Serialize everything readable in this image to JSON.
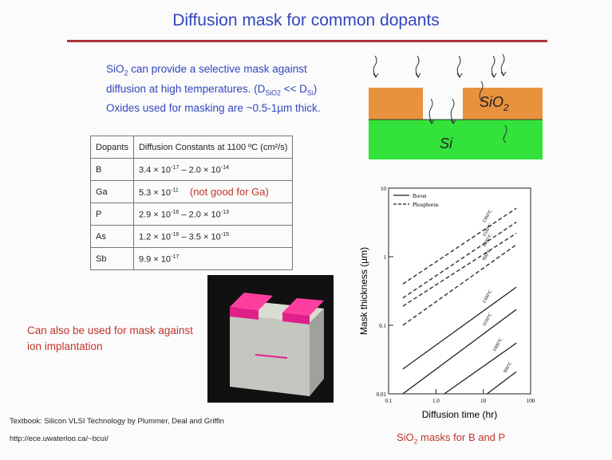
{
  "header": {
    "title": "Diffusion mask for common dopants"
  },
  "intro": {
    "line1": [
      "SiO",
      "2",
      " can provide a selective mask against"
    ],
    "line2": [
      "diffusion at high temperatures. (D",
      "SiO2",
      " << D",
      "Si",
      ")"
    ],
    "line3": "Oxides used for masking are ~0.5-1µm thick."
  },
  "table": {
    "header": [
      "Dopants",
      "Diffusion Constants at 1100 ºC (cm²/s)"
    ],
    "rows": [
      {
        "dopant": "B",
        "value": [
          "3.4 × 10",
          "-17",
          " – 2.0 × 10",
          "-14"
        ]
      },
      {
        "dopant": "Ga",
        "value": [
          "5.3 × 10",
          "-11"
        ],
        "note": "(not good for Ga)"
      },
      {
        "dopant": "P",
        "value": [
          "2.9 × 10",
          "-16",
          " – 2.0 × 10",
          "-13"
        ]
      },
      {
        "dopant": "As",
        "value": [
          "1.2 × 10",
          "-16",
          " – 3.5 × 10",
          "-15"
        ]
      },
      {
        "dopant": "Sb",
        "value": [
          "9.9 × 10",
          "-17"
        ]
      }
    ]
  },
  "diagram": {
    "oxide": [
      "SiO",
      "2"
    ],
    "substrate": "Si"
  },
  "implant_note": "Can also be used for mask against ion implantation",
  "plot": {
    "ylabel": "Mask thickness (µm)",
    "xlabel": "Diffusion time (hr)",
    "xscale": "log",
    "yscale": "log",
    "xlim": [
      0.1,
      100
    ],
    "ylim": [
      0.01,
      10
    ],
    "xticks": [
      0.1,
      {
        "value": 1,
        "label": "1.0"
      },
      10,
      100
    ],
    "yticks": [
      0.01,
      0.1,
      1,
      10
    ],
    "legend": [
      {
        "label": "Boron",
        "dashed": false
      },
      {
        "label": "Phosphorus",
        "dashed": true
      }
    ],
    "series": [
      {
        "name": "1300°C",
        "dashed": true,
        "x": [
          0.2,
          50
        ],
        "values": [
          0.4,
          5.1
        ]
      },
      {
        "name": "1100°C",
        "dashed": true,
        "x": [
          0.2,
          50
        ],
        "values": [
          0.25,
          3.2
        ]
      },
      {
        "name": "1000°C",
        "dashed": true,
        "x": [
          0.2,
          50
        ],
        "values": [
          0.19,
          2.2
        ]
      },
      {
        "name": "900°C",
        "dashed": true,
        "x": [
          0.2,
          50
        ],
        "values": [
          0.1,
          1.5
        ]
      },
      {
        "name": "1300°C",
        "dashed": false,
        "x": [
          0.2,
          50
        ],
        "values": [
          0.023,
          0.36
        ]
      },
      {
        "name": "1100°C",
        "dashed": false,
        "x": [
          0.2,
          50
        ],
        "values": [
          0.01,
          0.17
        ]
      },
      {
        "name": "1000°C",
        "dashed": false,
        "x": [
          1.5,
          50
        ],
        "values": [
          0.01,
          0.055
        ]
      },
      {
        "name": "900°C",
        "dashed": false,
        "x": [
          12,
          50
        ],
        "values": [
          0.01,
          0.021
        ]
      }
    ]
  },
  "caption": [
    "SiO",
    "2",
    " masks for B and P"
  ],
  "footer": {
    "textbook": "Textbook: Silicon VLSI Technology by Plummer, Deal and Griffin",
    "url": "http://ece.uwaterloo.ca/~bcui/"
  }
}
